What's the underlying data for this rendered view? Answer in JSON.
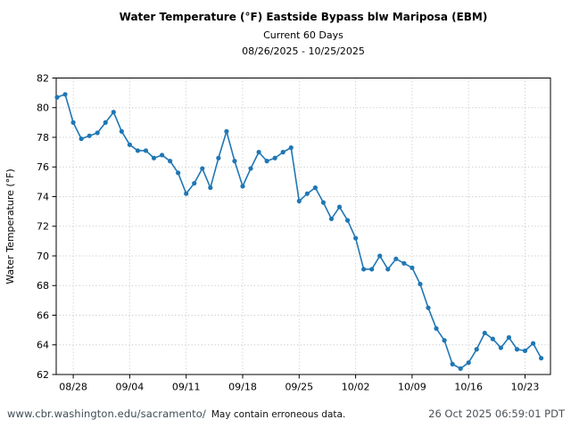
{
  "chart_data": {
    "type": "line",
    "title": "Water Temperature (°F) Eastside Bypass blw Mariposa (EBM)",
    "subtitle": "Current 60 Days",
    "date_range_label": "08/26/2025 - 10/25/2025",
    "ylabel": "Water Temperature (°F)",
    "xlabel": "",
    "ylim": [
      62,
      82
    ],
    "y_ticks": [
      62,
      64,
      66,
      68,
      70,
      72,
      74,
      76,
      78,
      80,
      82
    ],
    "x_start_date": "08/26/2025",
    "x_end_date": "10/25/2025",
    "x_interval": "daily",
    "x_ticks": [
      {
        "day": 2,
        "label": "08/28"
      },
      {
        "day": 9,
        "label": "09/04"
      },
      {
        "day": 16,
        "label": "09/11"
      },
      {
        "day": 23,
        "label": "09/18"
      },
      {
        "day": 30,
        "label": "09/25"
      },
      {
        "day": 37,
        "label": "10/02"
      },
      {
        "day": 44,
        "label": "10/09"
      },
      {
        "day": 51,
        "label": "10/16"
      },
      {
        "day": 58,
        "label": "10/23"
      }
    ],
    "grid": true,
    "legend_position": "none",
    "line_color": "#1f77b4",
    "marker": "circle",
    "values": [
      80.7,
      80.9,
      79.0,
      77.9,
      78.1,
      78.3,
      79.0,
      79.7,
      78.4,
      77.5,
      77.1,
      77.1,
      76.6,
      76.8,
      76.4,
      75.6,
      74.2,
      74.9,
      75.9,
      74.6,
      76.6,
      78.4,
      76.4,
      74.7,
      75.9,
      77.0,
      76.4,
      76.6,
      77.0,
      77.3,
      73.7,
      74.2,
      74.6,
      73.6,
      72.5,
      73.3,
      72.4,
      71.2,
      69.1,
      69.1,
      70.0,
      69.1,
      69.8,
      69.5,
      69.2,
      68.1,
      66.5,
      65.1,
      64.3,
      62.7,
      62.4,
      62.8,
      63.7,
      64.8,
      64.4,
      63.8,
      64.5,
      63.7,
      63.6,
      64.1,
      63.1
    ]
  },
  "footer": {
    "url": "www.cbr.washington.edu/sacramento/",
    "disclaimer": "May contain erroneous data.",
    "timestamp": "26 Oct 2025 06:59:01 PDT",
    "url_color": "#3e4c54",
    "timestamp_color": "#4a5258"
  }
}
